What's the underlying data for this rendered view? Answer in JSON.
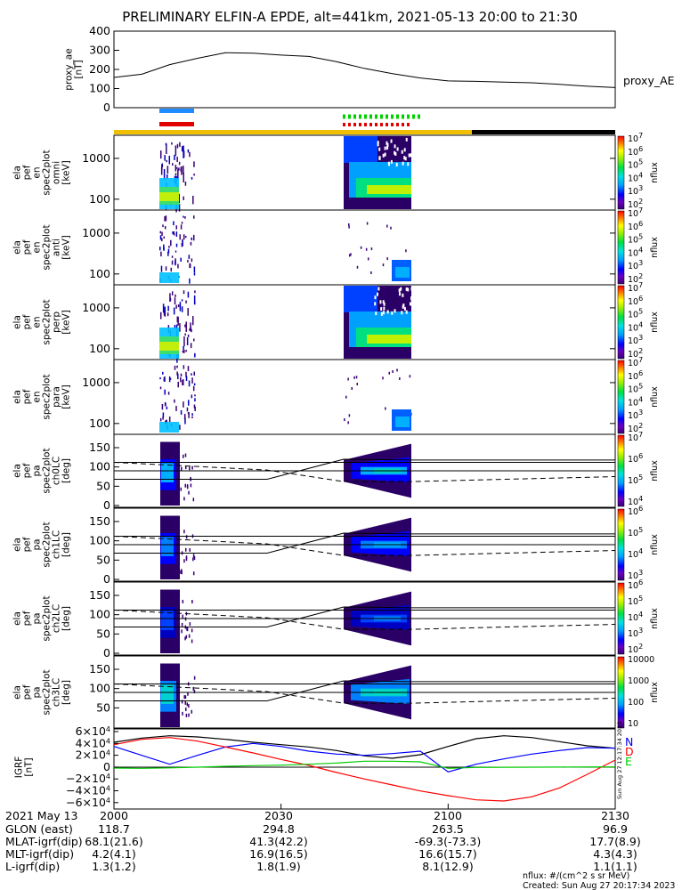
{
  "chart_data": {
    "type": "heatmap",
    "title": "PRELIMINARY ELFIN-A EPDE, alt=441km, 2021-05-13 20:00 to 21:30",
    "time_labels": [
      "2000",
      "2030",
      "2100",
      "2130"
    ],
    "panels": [
      {
        "kind": "line",
        "ylabel_lines": [
          "proxy_ae",
          "[nT]"
        ],
        "yticks": [
          "400",
          "300",
          "200",
          "100",
          "0"
        ],
        "ylim": [
          0,
          400
        ],
        "series_label": "proxy_AE",
        "x_min": [
          0,
          5,
          10,
          15,
          20,
          25,
          30,
          35,
          40,
          45,
          50,
          55,
          60,
          65,
          70,
          75,
          80,
          85,
          90
        ],
        "values": [
          158,
          175,
          225,
          258,
          287,
          285,
          275,
          268,
          240,
          205,
          178,
          155,
          140,
          138,
          134,
          130,
          122,
          112,
          105
        ]
      },
      {
        "kind": "spectrogram",
        "ylabel_lines": [
          "ela",
          "pef",
          "en",
          "spec2plot",
          "omni",
          "[keV]"
        ],
        "yticks": [
          "1000",
          "100"
        ],
        "colorbar_ticks": [
          "10^2",
          "10^3",
          "10^4",
          "10^5",
          "10^6",
          "10^7"
        ],
        "colorbar_label": "nflux"
      },
      {
        "kind": "spectrogram",
        "ylabel_lines": [
          "ela",
          "pef",
          "en",
          "spec2plot",
          "anti",
          "[keV]"
        ],
        "yticks": [
          "1000",
          "100"
        ],
        "colorbar_ticks": [
          "10^2",
          "10^3",
          "10^4",
          "10^5",
          "10^6",
          "10^7"
        ],
        "colorbar_label": "nflux"
      },
      {
        "kind": "spectrogram",
        "ylabel_lines": [
          "ela",
          "pef",
          "en",
          "spec2plot",
          "perp",
          "[keV]"
        ],
        "yticks": [
          "1000",
          "100"
        ],
        "colorbar_ticks": [
          "10^2",
          "10^3",
          "10^4",
          "10^5",
          "10^6",
          "10^7"
        ],
        "colorbar_label": "nflux"
      },
      {
        "kind": "spectrogram",
        "ylabel_lines": [
          "ela",
          "pef",
          "en",
          "spec2plot",
          "para",
          "[keV]"
        ],
        "yticks": [
          "1000",
          "100"
        ],
        "colorbar_ticks": [
          "10^2",
          "10^3",
          "10^4",
          "10^5",
          "10^6",
          "10^7"
        ],
        "colorbar_label": "nflux"
      },
      {
        "kind": "pitch",
        "ylabel_lines": [
          "ela",
          "pef",
          "pa",
          "spec2plot",
          "ch0LC",
          "[deg]"
        ],
        "yticks": [
          "150",
          "100",
          "50",
          "0"
        ],
        "colorbar_ticks": [
          "10^4",
          "10^5",
          "10^6",
          "10^7"
        ],
        "colorbar_label": "nflux"
      },
      {
        "kind": "pitch",
        "ylabel_lines": [
          "ela",
          "pef",
          "pa",
          "spec2plot",
          "ch1LC",
          "[deg]"
        ],
        "yticks": [
          "150",
          "100",
          "50",
          "0"
        ],
        "colorbar_ticks": [
          "10^3",
          "10^4",
          "10^5",
          "10^6"
        ],
        "colorbar_label": "nflux"
      },
      {
        "kind": "pitch",
        "ylabel_lines": [
          "ela",
          "pef",
          "pa",
          "spec2plot",
          "ch2LC",
          "[deg]"
        ],
        "yticks": [
          "150",
          "100",
          "50",
          "0"
        ],
        "colorbar_ticks": [
          "10^2",
          "10^3",
          "10^4",
          "10^5",
          "10^6"
        ],
        "colorbar_label": "nflux"
      },
      {
        "kind": "pitch",
        "ylabel_lines": [
          "ela",
          "pef",
          "pa",
          "spec2plot",
          "ch3LC",
          "[deg]"
        ],
        "yticks": [
          "150",
          "100",
          "50"
        ],
        "colorbar_ticks": [
          "10",
          "100",
          "1000",
          "10000"
        ],
        "colorbar_label": "nflux"
      },
      {
        "kind": "bfield",
        "ylabel_lines": [
          "IGRF",
          "[nT]"
        ],
        "yticks": [
          "6×10^4",
          "4×10^4",
          "2×10^4",
          "0",
          "−2×10^4",
          "−4×10^4",
          "−6×10^4"
        ],
        "ylim": [
          -60000,
          60000
        ],
        "legend": [
          "N",
          "D",
          "E"
        ],
        "legend_colors": [
          "#0000ff",
          "#ff0000",
          "#00cc00"
        ],
        "stamp": "Sun Aug 27 12:17:34 2023",
        "x_min": [
          0,
          5,
          10,
          15,
          20,
          25,
          30,
          35,
          40,
          45,
          50,
          55,
          60,
          65,
          70,
          75,
          80,
          85,
          90
        ],
        "series": [
          {
            "color": "#000000",
            "values": [
              42000,
              49000,
              53000,
              51000,
              47000,
              42000,
              38000,
              34000,
              28000,
              19000,
              15000,
              21000,
              35000,
              48000,
              53000,
              50000,
              43000,
              36000,
              32000
            ]
          },
          {
            "color": "#0000ff",
            "values": [
              35000,
              20000,
              5000,
              20000,
              34000,
              40000,
              35000,
              27000,
              22000,
              20000,
              23000,
              27000,
              -8000,
              5000,
              14000,
              22000,
              28000,
              33000,
              32000
            ]
          },
          {
            "color": "#ff0000",
            "values": [
              38000,
              47000,
              50000,
              44000,
              34000,
              24000,
              13000,
              3000,
              -9000,
              -20000,
              -30000,
              -40000,
              -48000,
              -55000,
              -57000,
              -50000,
              -35000,
              -12000,
              12000
            ]
          },
          {
            "color": "#00cc00",
            "values": [
              -1500,
              -2000,
              -1200,
              0,
              1500,
              2500,
              3500,
              5000,
              7000,
              10000,
              10000,
              9000,
              -2000,
              -500,
              -200,
              0,
              200,
              400,
              500
            ]
          }
        ]
      }
    ],
    "footer": {
      "rows": [
        {
          "label": "2021 May 13",
          "values": [
            "2000",
            "2030",
            "2100",
            "2130"
          ]
        },
        {
          "label": "GLON (east)",
          "values": [
            "118.7",
            "294.8",
            "263.5",
            "96.9"
          ]
        },
        {
          "label": "MLAT-igrf(dip)",
          "values": [
            "68.1(21.6)",
            "41.3(42.2)",
            "-69.3(-73.3)",
            "17.7(8.9)"
          ]
        },
        {
          "label": "MLT-igrf(dip)",
          "values": [
            "4.2(4.1)",
            "16.9(16.5)",
            "16.6(15.7)",
            "4.3(4.3)"
          ]
        },
        {
          "label": "L-igrf(dip)",
          "values": [
            "1.3(1.2)",
            "1.8(1.9)",
            "8.1(12.9)",
            "1.1(1.1)"
          ]
        }
      ],
      "units_note": "nflux: #/(cm^2 s sr MeV)",
      "created": "Created: Sun Aug 27 20:17:34 2023"
    }
  }
}
